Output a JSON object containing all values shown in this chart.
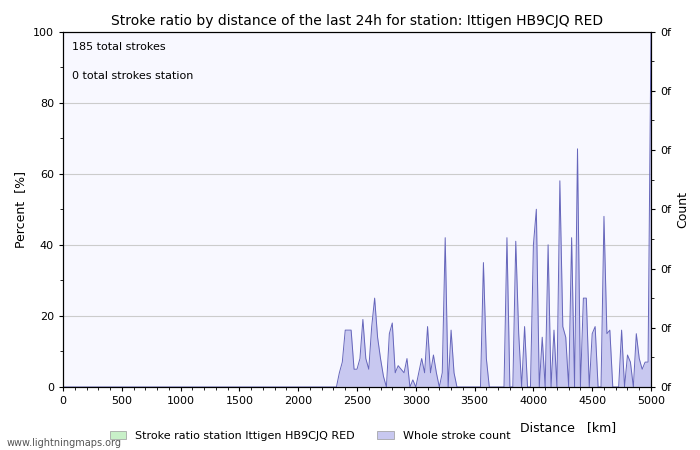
{
  "title": "Stroke ratio by distance of the last 24h for station: Ittigen HB9CJQ RED",
  "xlabel": "Distance   [km]",
  "ylabel_left": "Percent  [%]",
  "ylabel_right": "Count",
  "annotation_line1": "185 total strokes",
  "annotation_line2": "0 total strokes station",
  "watermark": "www.lightningmaps.org",
  "legend_label_green": "Stroke ratio station Ittigen HB9CJQ RED",
  "legend_label_blue": "Whole stroke count",
  "xlim": [
    0,
    5000
  ],
  "ylim": [
    0,
    100
  ],
  "x_ticks": [
    0,
    500,
    1000,
    1500,
    2000,
    2500,
    3000,
    3500,
    4000,
    4500,
    5000
  ],
  "y_ticks_left": [
    0,
    20,
    40,
    60,
    80,
    100
  ],
  "right_ytick_labels": [
    "0f",
    "0f",
    "0f",
    "0f",
    "0f",
    "0f",
    "0f"
  ],
  "right_ytick_positions": [
    0,
    16.67,
    33.33,
    50,
    66.67,
    83.33,
    100
  ],
  "fill_color_blue": "#c8c8f0",
  "line_color_blue": "#6666bb",
  "fill_color_green": "#c8f0c8",
  "line_color_green": "#66bb66",
  "background_color": "#f8f8ff",
  "title_fontsize": 10,
  "axis_label_fontsize": 9,
  "tick_fontsize": 8,
  "stroke_data_x": [
    0,
    25,
    50,
    75,
    100,
    125,
    150,
    175,
    200,
    225,
    250,
    275,
    300,
    325,
    350,
    375,
    400,
    425,
    450,
    475,
    500,
    525,
    550,
    575,
    600,
    625,
    650,
    675,
    700,
    725,
    750,
    775,
    800,
    825,
    850,
    875,
    900,
    925,
    950,
    975,
    1000,
    1025,
    1050,
    1075,
    1100,
    1125,
    1150,
    1175,
    1200,
    1225,
    1250,
    1275,
    1300,
    1325,
    1350,
    1375,
    1400,
    1425,
    1450,
    1475,
    1500,
    1525,
    1550,
    1575,
    1600,
    1625,
    1650,
    1675,
    1700,
    1725,
    1750,
    1775,
    1800,
    1825,
    1850,
    1875,
    1900,
    1925,
    1950,
    1975,
    2000,
    2025,
    2050,
    2075,
    2100,
    2125,
    2150,
    2175,
    2200,
    2225,
    2250,
    2275,
    2300,
    2325,
    2350,
    2375,
    2400,
    2425,
    2450,
    2475,
    2500,
    2525,
    2550,
    2575,
    2600,
    2625,
    2650,
    2675,
    2700,
    2725,
    2750,
    2775,
    2800,
    2825,
    2850,
    2875,
    2900,
    2925,
    2950,
    2975,
    3000,
    3025,
    3050,
    3075,
    3100,
    3125,
    3150,
    3175,
    3200,
    3225,
    3250,
    3275,
    3300,
    3325,
    3350,
    3375,
    3400,
    3425,
    3450,
    3475,
    3500,
    3525,
    3550,
    3575,
    3600,
    3625,
    3650,
    3675,
    3700,
    3725,
    3750,
    3775,
    3800,
    3825,
    3850,
    3875,
    3900,
    3925,
    3950,
    3975,
    4000,
    4025,
    4050,
    4075,
    4100,
    4125,
    4150,
    4175,
    4200,
    4225,
    4250,
    4275,
    4300,
    4325,
    4350,
    4375,
    4400,
    4425,
    4450,
    4475,
    4500,
    4525,
    4550,
    4575,
    4600,
    4625,
    4650,
    4675,
    4700,
    4725,
    4750,
    4775,
    4800,
    4825,
    4850,
    4875,
    4900,
    4925,
    4950,
    4975,
    5000
  ],
  "stroke_data_y": [
    0,
    0,
    0,
    0,
    0,
    0,
    0,
    0,
    0,
    0,
    0,
    0,
    0,
    0,
    0,
    0,
    0,
    0,
    0,
    0,
    0,
    0,
    0,
    0,
    0,
    0,
    0,
    0,
    0,
    0,
    0,
    0,
    0,
    0,
    0,
    0,
    0,
    0,
    0,
    0,
    0,
    0,
    0,
    0,
    0,
    0,
    0,
    0,
    0,
    0,
    0,
    0,
    0,
    0,
    0,
    0,
    0,
    0,
    0,
    0,
    0,
    0,
    0,
    0,
    0,
    0,
    0,
    0,
    0,
    0,
    0,
    0,
    0,
    0,
    0,
    0,
    0,
    0,
    0,
    0,
    0,
    0,
    0,
    0,
    0,
    0,
    0,
    0,
    0,
    0,
    0,
    0,
    0,
    0,
    4,
    7,
    16,
    16,
    16,
    5,
    5,
    8,
    19,
    8,
    5,
    17,
    25,
    14,
    8,
    3,
    0,
    15,
    18,
    4,
    6,
    5,
    4,
    8,
    0,
    2,
    0,
    4,
    8,
    4,
    17,
    4,
    9,
    4,
    0,
    4,
    42,
    0,
    16,
    4,
    0,
    0,
    0,
    0,
    0,
    0,
    0,
    0,
    0,
    35,
    8,
    0,
    0,
    0,
    0,
    0,
    0,
    42,
    0,
    0,
    41,
    15,
    0,
    17,
    0,
    0,
    40,
    50,
    0,
    14,
    0,
    40,
    0,
    16,
    0,
    58,
    17,
    14,
    0,
    42,
    0,
    67,
    0,
    25,
    25,
    0,
    15,
    17,
    0,
    0,
    48,
    15,
    16,
    0,
    0,
    0,
    16,
    0,
    9,
    7,
    0,
    15,
    8,
    5,
    7,
    7,
    100
  ]
}
